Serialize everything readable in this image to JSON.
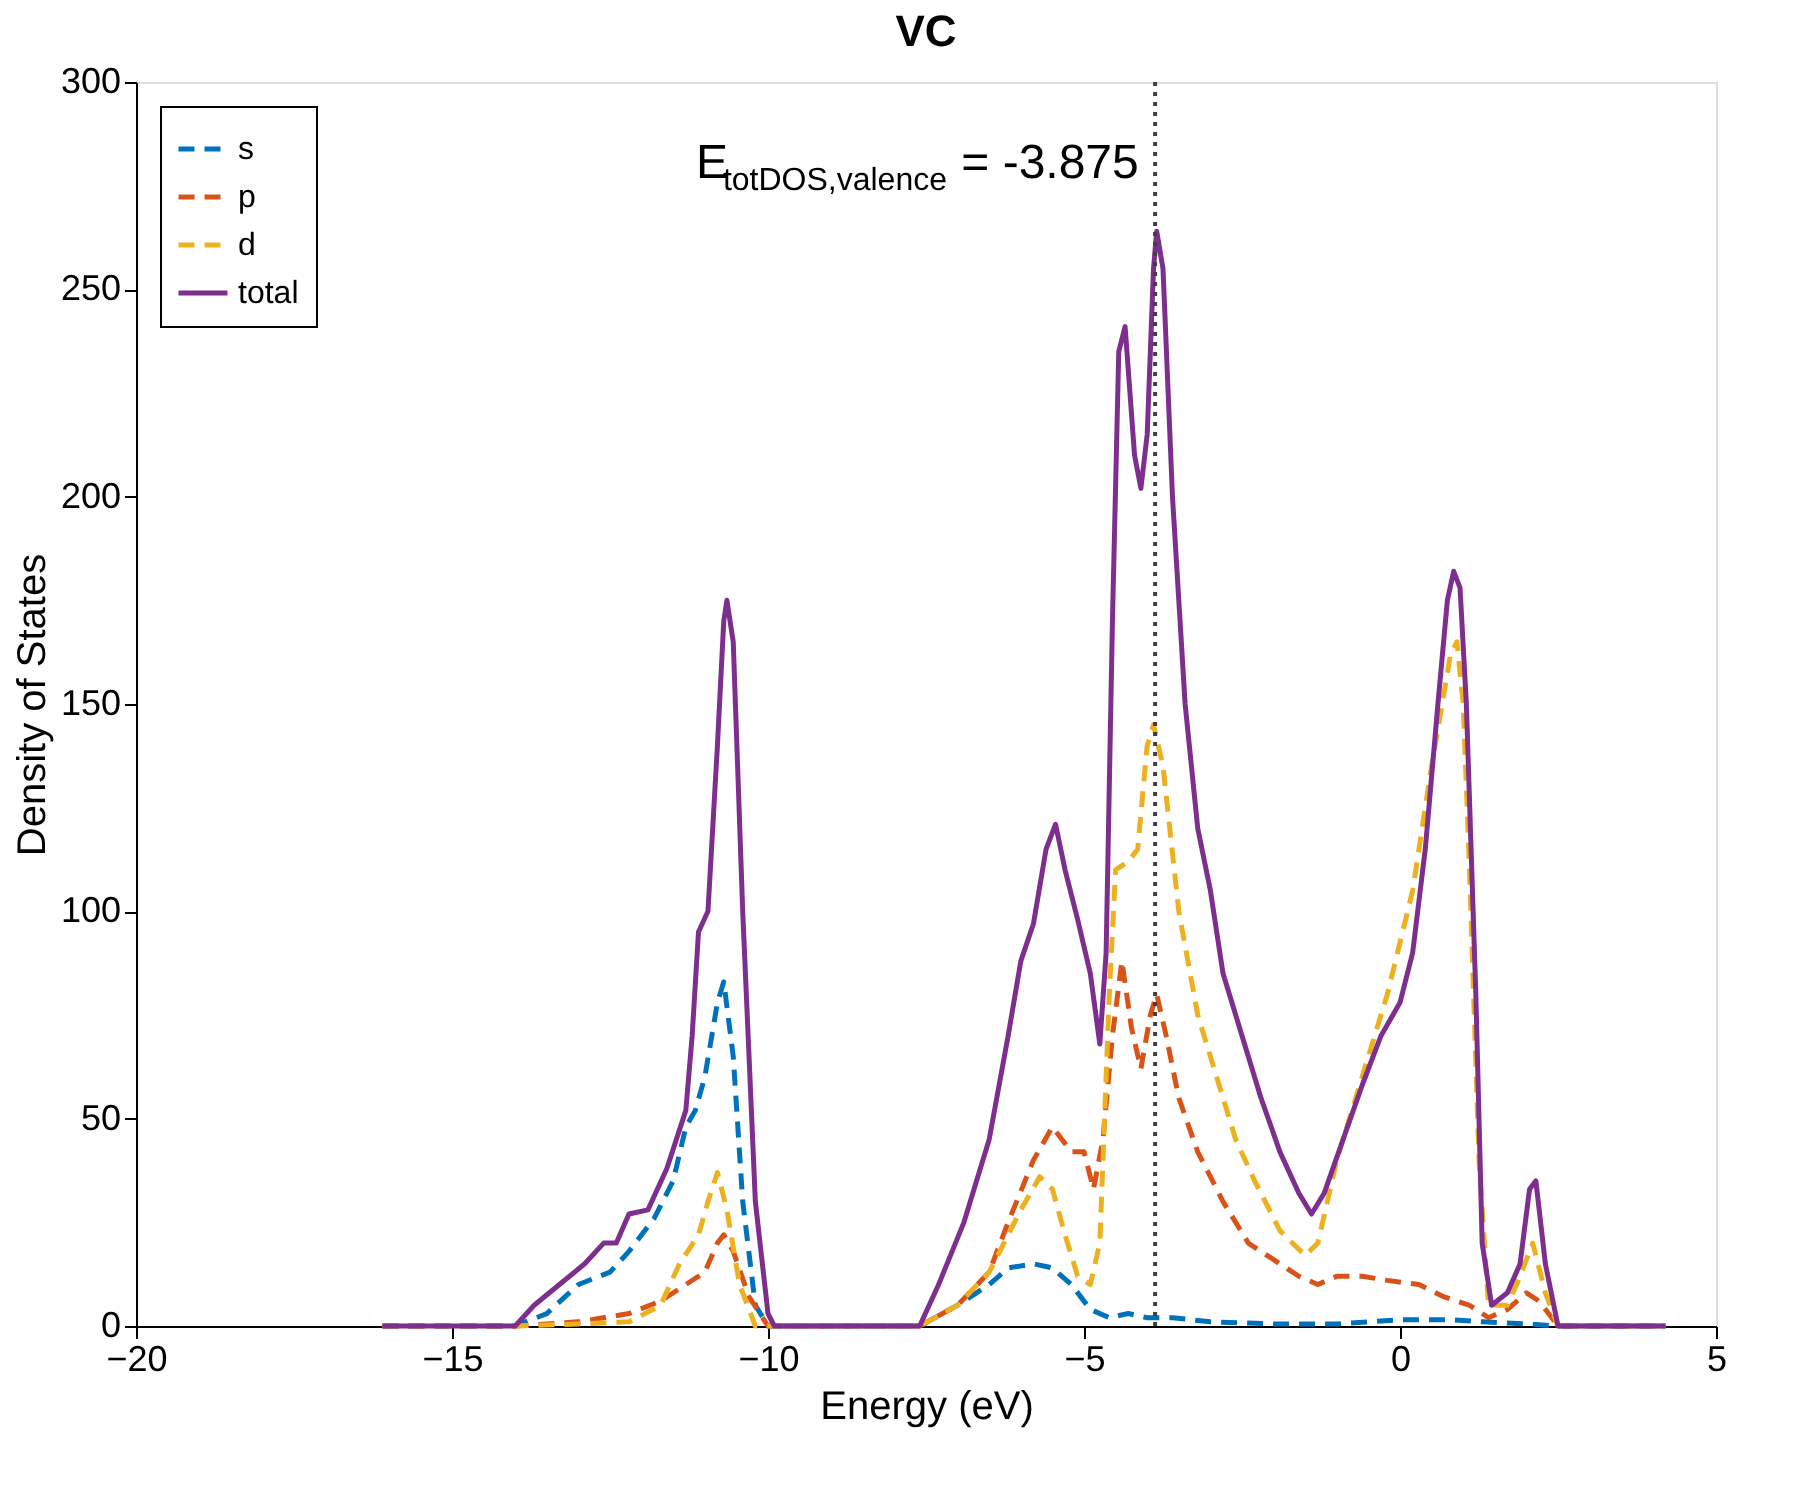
{
  "chart_data": {
    "type": "line",
    "title": "VC",
    "xlabel": "Energy (eV)",
    "ylabel": "Density of States",
    "xlim": [
      -20,
      5
    ],
    "ylim": [
      0,
      300
    ],
    "xticks": [
      -20,
      -15,
      -10,
      -5,
      0,
      5
    ],
    "yticks": [
      0,
      50,
      100,
      150,
      200,
      250,
      300
    ],
    "grid": false,
    "legend": "top left",
    "marker": "none",
    "annotations": [
      "E$_{totDOS,valence}$ = -3.875"
    ],
    "ref_lines": [
      {
        "axis": "x",
        "value": -3.875,
        "line_style": "dotted",
        "color": "#404040"
      }
    ],
    "series": [
      {
        "name": "s",
        "color": "#0072bd",
        "line_style": "dashed",
        "x": [
          -16.1,
          -14,
          -13.5,
          -13,
          -12.5,
          -12.2,
          -11.8,
          -11.5,
          -11.3,
          -11.15,
          -11.0,
          -10.8,
          -10.7,
          -10.55,
          -10.4,
          -10.2,
          -10,
          -7.6,
          -7,
          -6.5,
          -6.2,
          -5.8,
          -5.5,
          -5.2,
          -4.9,
          -4.6,
          -4.3,
          -4.0,
          -3.6,
          -3,
          -2,
          -1,
          0,
          0.8,
          1.3,
          2,
          2.5,
          4.2
        ],
        "values": [
          0,
          0,
          3,
          10,
          13,
          18,
          26,
          35,
          48,
          52,
          60,
          78,
          83,
          65,
          30,
          5,
          0,
          0,
          5,
          10,
          14,
          15,
          14,
          10,
          4,
          2,
          3,
          2,
          2,
          1,
          0.5,
          0.5,
          1.5,
          1.5,
          1,
          0.5,
          0,
          0
        ]
      },
      {
        "name": "p",
        "color": "#d95319",
        "line_style": "dashed",
        "x": [
          -16.1,
          -14,
          -13,
          -12.2,
          -11.7,
          -11.3,
          -11.0,
          -10.8,
          -10.7,
          -10.55,
          -10.3,
          -10.0,
          -7.6,
          -7.0,
          -6.5,
          -6.2,
          -5.8,
          -5.5,
          -5.2,
          -5.0,
          -4.85,
          -4.7,
          -4.55,
          -4.4,
          -4.25,
          -4.1,
          -3.95,
          -3.85,
          -3.7,
          -3.5,
          -3.2,
          -2.8,
          -2.4,
          -2.0,
          -1.6,
          -1.3,
          -1.0,
          -0.6,
          -0.2,
          0.3,
          0.7,
          1.1,
          1.4,
          1.7,
          2.0,
          2.2,
          2.5,
          4.2
        ],
        "values": [
          0,
          0,
          1,
          3,
          6,
          10,
          13,
          20,
          22,
          18,
          7,
          0,
          0,
          5,
          13,
          25,
          40,
          48,
          42,
          42,
          33,
          45,
          70,
          88,
          72,
          62,
          75,
          80,
          70,
          55,
          42,
          30,
          20,
          16,
          12,
          10,
          12,
          12,
          11,
          10,
          7,
          5,
          2,
          4,
          8,
          6,
          0,
          0
        ]
      },
      {
        "name": "d",
        "color": "#edb120",
        "line_style": "dashed",
        "x": [
          -16.1,
          -14,
          -13,
          -12.2,
          -11.7,
          -11.4,
          -11.1,
          -10.95,
          -10.8,
          -10.65,
          -10.45,
          -10.2,
          -7.6,
          -7,
          -6.5,
          -6.0,
          -5.7,
          -5.5,
          -5.3,
          -5.1,
          -4.9,
          -4.75,
          -4.6,
          -4.5,
          -4.3,
          -4.15,
          -4.0,
          -3.9,
          -3.75,
          -3.5,
          -3.2,
          -2.9,
          -2.6,
          -2.3,
          -1.9,
          -1.5,
          -1.3,
          -1.0,
          -0.6,
          -0.2,
          0.2,
          0.5,
          0.8,
          0.9,
          1.0,
          1.1,
          1.25,
          1.4,
          1.7,
          1.9,
          2.1,
          2.3,
          2.5,
          4.2
        ],
        "values": [
          0,
          0,
          0.5,
          1,
          5,
          15,
          22,
          30,
          37,
          28,
          10,
          0,
          0,
          5,
          13,
          28,
          36,
          33,
          22,
          12,
          10,
          20,
          80,
          110,
          112,
          115,
          140,
          145,
          135,
          100,
          75,
          60,
          45,
          35,
          23,
          17,
          20,
          40,
          60,
          80,
          105,
          135,
          162,
          165,
          150,
          110,
          40,
          5,
          5,
          12,
          20,
          8,
          0,
          0
        ]
      },
      {
        "name": "total",
        "color": "#7e2f8e",
        "line_style": "solid",
        "x": [
          -16.1,
          -14.0,
          -13.7,
          -13.3,
          -12.9,
          -12.6,
          -12.4,
          -12.2,
          -11.9,
          -11.6,
          -11.3,
          -11.2,
          -11.1,
          -10.95,
          -10.8,
          -10.7,
          -10.65,
          -10.55,
          -10.4,
          -10.2,
          -10.0,
          -9.9,
          -7.6,
          -7.3,
          -6.9,
          -6.5,
          -6.2,
          -6.0,
          -5.8,
          -5.6,
          -5.45,
          -5.3,
          -5.1,
          -4.9,
          -4.75,
          -4.65,
          -4.55,
          -4.45,
          -4.35,
          -4.2,
          -4.1,
          -4.0,
          -3.9,
          -3.85,
          -3.75,
          -3.6,
          -3.4,
          -3.2,
          -3.0,
          -2.8,
          -2.5,
          -2.2,
          -1.9,
          -1.6,
          -1.4,
          -1.2,
          -0.9,
          -0.6,
          -0.3,
          0,
          0.2,
          0.4,
          0.6,
          0.75,
          0.85,
          0.95,
          1.05,
          1.2,
          1.3,
          1.45,
          1.7,
          1.9,
          2.05,
          2.15,
          2.3,
          2.5,
          4.2
        ],
        "values": [
          0,
          0,
          5,
          10,
          15,
          20,
          20,
          27,
          28,
          38,
          52,
          70,
          95,
          100,
          140,
          170,
          175,
          165,
          100,
          30,
          3,
          0,
          0,
          10,
          25,
          45,
          70,
          88,
          97,
          115,
          121,
          110,
          98,
          85,
          68,
          90,
          170,
          235,
          241,
          210,
          202,
          215,
          255,
          264,
          255,
          200,
          150,
          120,
          105,
          85,
          70,
          55,
          42,
          32,
          27,
          32,
          45,
          58,
          70,
          78,
          90,
          115,
          150,
          175,
          182,
          178,
          150,
          80,
          20,
          5,
          8,
          15,
          33,
          35,
          15,
          0,
          0
        ]
      }
    ]
  }
}
